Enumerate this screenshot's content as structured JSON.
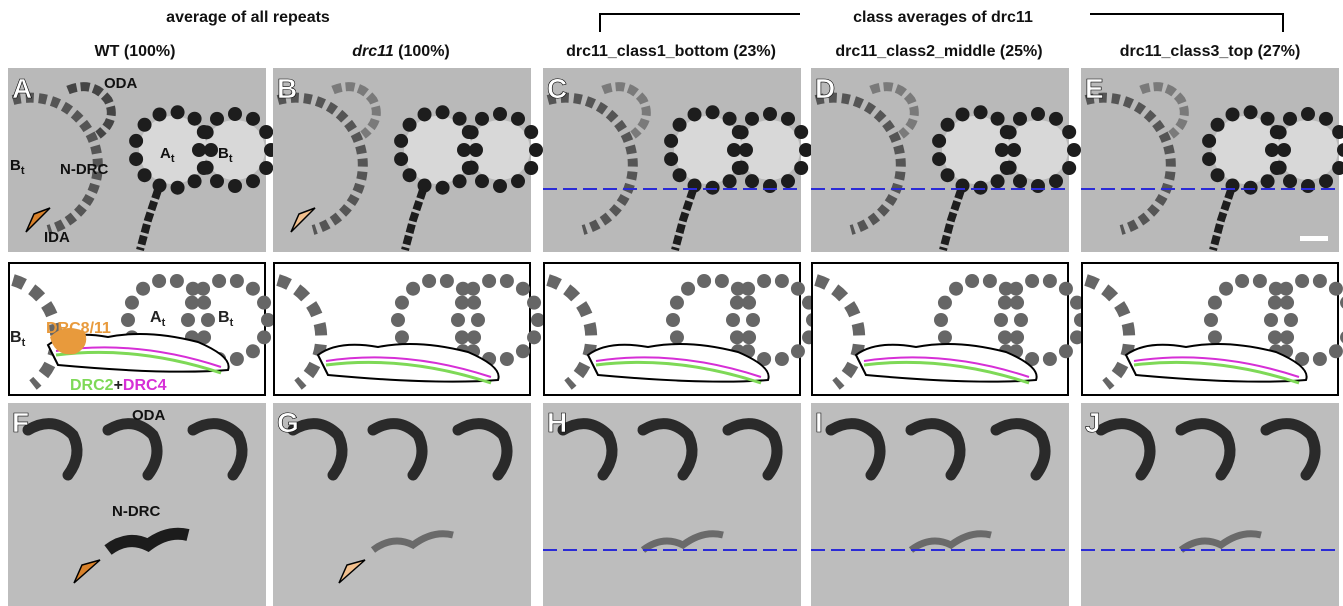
{
  "headers": {
    "left": "average of all repeats",
    "right": "class averages of drc11"
  },
  "columns": [
    {
      "title": "WT (100%)"
    },
    {
      "title_italic": "drc11",
      "title_rest": " (100%)"
    },
    {
      "title": "drc11_class1_bottom (23%)"
    },
    {
      "title": "drc11_class2_middle (25%)"
    },
    {
      "title": "drc11_class3_top (27%)"
    }
  ],
  "top_letters": [
    "A",
    "B",
    "C",
    "D",
    "E"
  ],
  "bottom_letters": [
    "F",
    "G",
    "H",
    "I",
    "J"
  ],
  "panel_a_labels": {
    "oda": "ODA",
    "ndrc": "N-DRC",
    "at_main": "A",
    "at_sub": "t",
    "bt_main": "B",
    "bt_sub": "t",
    "bt_left_main": "B",
    "bt_left_sub": "t",
    "ida": "IDA"
  },
  "diagram_labels": {
    "drc811": "DRC8/11",
    "at_main": "A",
    "at_sub": "t",
    "bt_main": "B",
    "bt_sub": "t",
    "bt_left_main": "B",
    "bt_left_sub": "t",
    "drc2": "DRC2",
    "plus": "+",
    "drc4": "DRC4"
  },
  "panel_f_labels": {
    "oda": "ODA",
    "ndrc": "N-DRC"
  }
}
